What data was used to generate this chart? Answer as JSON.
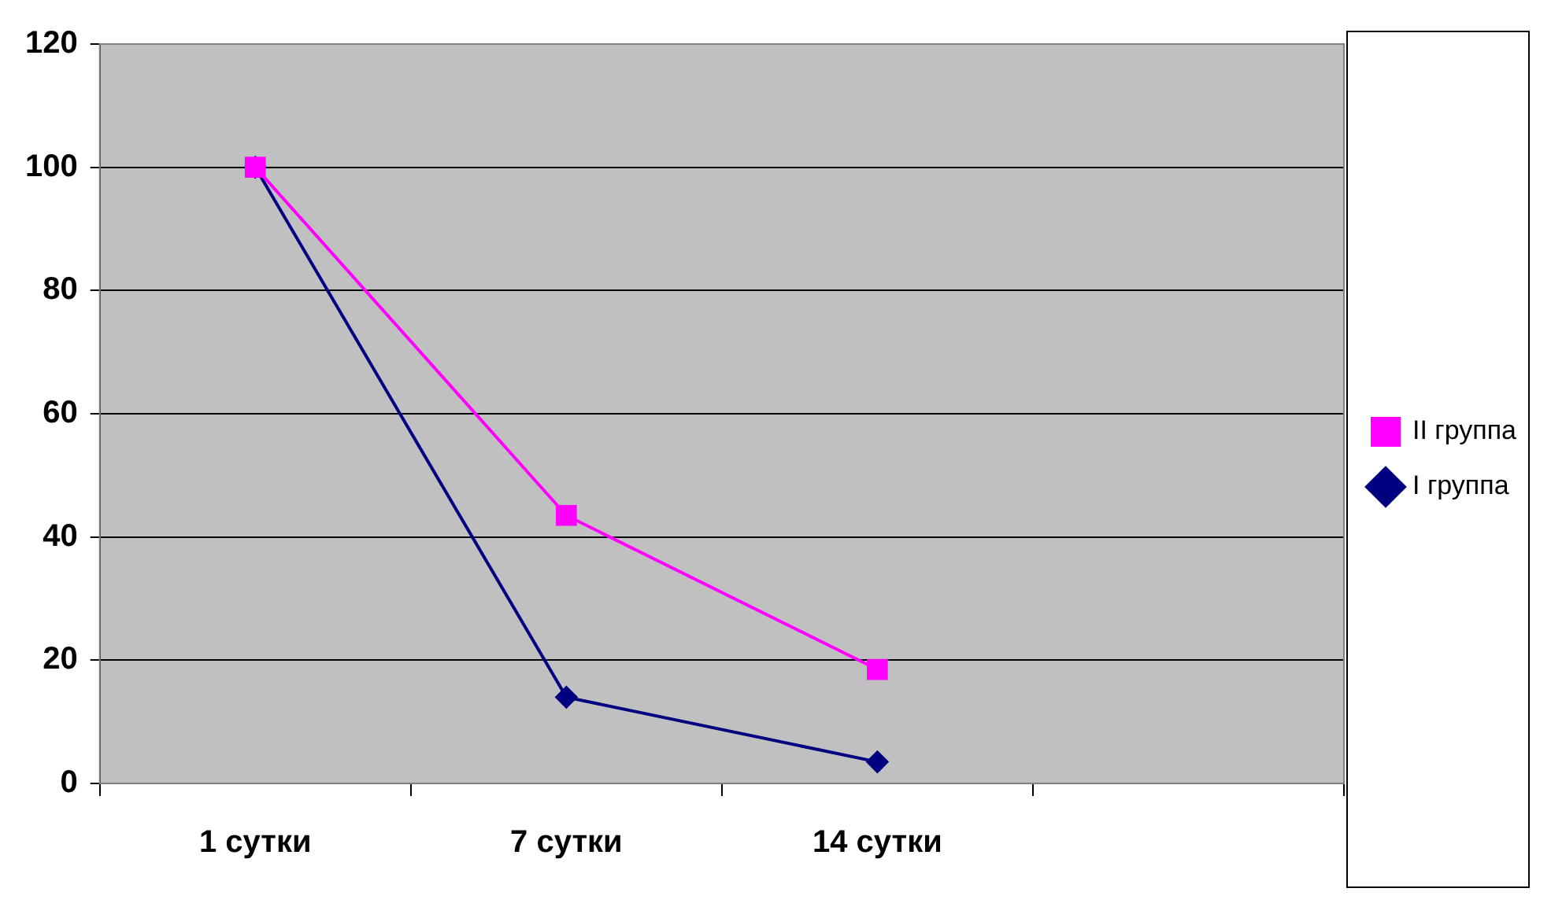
{
  "chart_data": {
    "type": "line",
    "categories": [
      "1 сутки",
      "7 сутки",
      "14 сутки",
      null
    ],
    "series": [
      {
        "name": "I группа",
        "color": "#000080",
        "marker": "diamond",
        "values": [
          100,
          14,
          3.5,
          null
        ]
      },
      {
        "name": "II группа",
        "color": "#ff00ff",
        "marker": "square",
        "values": [
          100,
          43.5,
          18.5,
          null
        ]
      }
    ],
    "ylim": [
      0,
      120
    ],
    "yticks": [
      0,
      20,
      40,
      60,
      80,
      100,
      120
    ],
    "grid": "y",
    "legend": "right",
    "line_style": "solid"
  }
}
